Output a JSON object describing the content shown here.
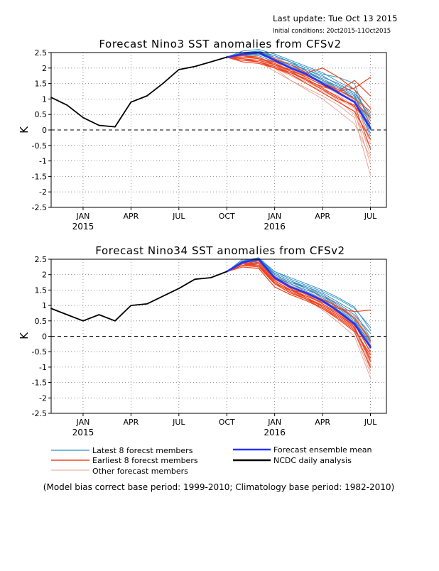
{
  "header": {
    "last_update": "Last update: Tue Oct 13 2015",
    "initial_conditions": "Initial conditions: 20ct2015-11Oct2015"
  },
  "legend": {
    "latest": "Latest 8 forecst members",
    "earliest": "Earliest 8 forecst members",
    "other": "Other forecast members",
    "mean": "Forecast ensemble mean",
    "observed": "NCDC daily analysis"
  },
  "footnote": "(Model bias correct base period: 1999-2010; Climatology base period: 1982-2010)",
  "colors": {
    "latest": "#2f8fc6",
    "earliest": "#ee4420",
    "other": "#e8a090",
    "mean": "#2233ff",
    "observed": "#000000"
  },
  "chart_data": [
    {
      "type": "line",
      "title": "Forecast Nino3 SST anomalies from CFSv2",
      "ylabel": "K",
      "xlabel": "",
      "ylim": [
        -2.5,
        2.5
      ],
      "yticks": [
        "2.5",
        "2",
        "1.5",
        "1",
        "0.5",
        "0",
        "-0.5",
        "-1",
        "-1.5",
        "-2",
        "-2.5"
      ],
      "xlim": [
        "2014-11",
        "2016-08"
      ],
      "xticks": [
        "JAN",
        "APR",
        "JUL",
        "OCT",
        "JAN",
        "APR",
        "JUL"
      ],
      "xtick_dates": [
        "2015-01",
        "2015-04",
        "2015-07",
        "2015-10",
        "2016-01",
        "2016-04",
        "2016-07"
      ],
      "year_labels": [
        "2015",
        "2016"
      ],
      "year_label_dates": [
        "2015-01",
        "2016-01"
      ],
      "grid": "dotted",
      "zero_line": "dashed",
      "observed": {
        "name": "NCDC daily analysis",
        "x": [
          "2014-11",
          "2014-12",
          "2015-01",
          "2015-02",
          "2015-03",
          "2015-04",
          "2015-05",
          "2015-06",
          "2015-07",
          "2015-08",
          "2015-09",
          "2015-10"
        ],
        "y": [
          1.05,
          0.8,
          0.4,
          0.15,
          0.1,
          0.9,
          1.1,
          1.5,
          1.95,
          2.05,
          2.2,
          2.35
        ]
      },
      "ensemble_mean": {
        "name": "Forecast ensemble mean",
        "x": [
          "2015-10",
          "2015-11",
          "2015-12",
          "2016-01",
          "2016-02",
          "2016-03",
          "2016-04",
          "2016-05",
          "2016-06",
          "2016-07"
        ],
        "y": [
          2.35,
          2.45,
          2.5,
          2.25,
          2.0,
          1.8,
          1.5,
          1.2,
          0.9,
          0.05
        ]
      },
      "members_x": [
        "2015-10",
        "2015-11",
        "2015-12",
        "2016-01",
        "2016-02",
        "2016-03",
        "2016-04",
        "2016-05",
        "2016-06",
        "2016-07"
      ],
      "members": {
        "latest": [
          [
            2.35,
            2.45,
            2.55,
            2.4,
            2.2,
            2.0,
            1.8,
            1.7,
            1.5,
            0.1
          ],
          [
            2.35,
            2.5,
            2.45,
            2.3,
            2.1,
            1.95,
            1.7,
            1.5,
            1.2,
            0.5
          ],
          [
            2.35,
            2.4,
            2.5,
            2.35,
            2.2,
            1.9,
            1.6,
            1.4,
            1.0,
            -0.2
          ],
          [
            2.35,
            2.55,
            2.6,
            2.45,
            2.25,
            2.05,
            1.85,
            1.55,
            1.3,
            0.3
          ],
          [
            2.35,
            2.45,
            2.4,
            2.2,
            2.0,
            1.8,
            1.55,
            1.3,
            1.05,
            0.2
          ],
          [
            2.35,
            2.5,
            2.55,
            2.3,
            2.05,
            1.85,
            1.6,
            1.35,
            1.1,
            -0.1
          ],
          [
            2.35,
            2.4,
            2.45,
            2.25,
            2.15,
            1.95,
            1.75,
            1.45,
            1.2,
            0.4
          ],
          [
            2.35,
            2.5,
            2.5,
            2.4,
            2.2,
            1.9,
            1.65,
            1.4,
            1.15,
            0.0
          ]
        ],
        "earliest": [
          [
            2.35,
            2.3,
            2.2,
            2.0,
            1.8,
            1.5,
            1.2,
            0.9,
            0.6,
            -0.3
          ],
          [
            2.35,
            2.4,
            2.35,
            2.1,
            1.9,
            1.75,
            1.5,
            1.3,
            1.0,
            0.6
          ],
          [
            2.35,
            2.2,
            2.15,
            2.0,
            1.85,
            1.6,
            1.4,
            1.25,
            1.6,
            1.1
          ],
          [
            2.35,
            2.35,
            2.3,
            2.15,
            1.9,
            1.6,
            1.3,
            1.0,
            0.8,
            -0.6
          ],
          [
            2.35,
            2.3,
            2.25,
            2.1,
            1.95,
            1.7,
            1.45,
            1.2,
            0.9,
            0.4
          ],
          [
            2.35,
            2.45,
            2.5,
            2.3,
            2.1,
            1.85,
            2.0,
            1.7,
            1.3,
            0.7
          ],
          [
            2.35,
            2.25,
            2.2,
            2.05,
            1.85,
            1.65,
            1.35,
            1.05,
            0.75,
            0.2
          ],
          [
            2.35,
            2.4,
            2.3,
            2.2,
            2.0,
            1.8,
            1.5,
            1.25,
            1.35,
            1.7
          ]
        ],
        "other": [
          [
            2.35,
            2.4,
            2.3,
            2.0,
            1.6,
            1.3,
            1.0,
            0.6,
            0.2,
            -0.9
          ],
          [
            2.35,
            2.3,
            2.2,
            1.9,
            1.6,
            1.35,
            1.1,
            0.8,
            0.4,
            -1.45
          ],
          [
            2.35,
            2.45,
            2.35,
            2.1,
            1.85,
            1.6,
            1.3,
            0.95,
            0.5,
            -0.6
          ],
          [
            2.35,
            2.5,
            2.4,
            2.2,
            1.9,
            1.7,
            1.45,
            1.15,
            0.9,
            -0.3
          ],
          [
            2.35,
            2.4,
            2.45,
            2.25,
            2.0,
            1.75,
            1.5,
            1.3,
            1.05,
            0.1
          ],
          [
            2.35,
            2.35,
            2.3,
            2.1,
            1.8,
            1.55,
            1.3,
            1.1,
            0.8,
            -0.1
          ],
          [
            2.35,
            2.45,
            2.5,
            2.35,
            2.1,
            1.9,
            1.6,
            1.3,
            0.95,
            0.3
          ],
          [
            2.35,
            2.3,
            2.25,
            2.05,
            1.8,
            1.5,
            1.2,
            0.9,
            0.6,
            -1.1
          ],
          [
            2.35,
            2.4,
            2.35,
            2.15,
            1.95,
            1.75,
            1.55,
            1.35,
            1.1,
            0.45
          ],
          [
            2.35,
            2.35,
            2.4,
            2.2,
            2.0,
            1.85,
            1.65,
            1.4,
            1.15,
            0.2
          ],
          [
            2.35,
            2.45,
            2.45,
            2.3,
            2.05,
            1.8,
            1.55,
            1.25,
            1.0,
            -0.45
          ],
          [
            2.35,
            2.3,
            2.2,
            2.0,
            1.75,
            1.5,
            1.25,
            1.0,
            0.7,
            -0.8
          ]
        ]
      }
    },
    {
      "type": "line",
      "title": "Forecast Nino34 SST anomalies from CFSv2",
      "ylabel": "K",
      "xlabel": "",
      "ylim": [
        -2.5,
        2.5
      ],
      "yticks": [
        "2.5",
        "2",
        "1.5",
        "1",
        "0.5",
        "0",
        "-0.5",
        "-1",
        "-1.5",
        "-2",
        "-2.5"
      ],
      "xlim": [
        "2014-11",
        "2016-08"
      ],
      "xticks": [
        "JAN",
        "APR",
        "JUL",
        "OCT",
        "JAN",
        "APR",
        "JUL"
      ],
      "xtick_dates": [
        "2015-01",
        "2015-04",
        "2015-07",
        "2015-10",
        "2016-01",
        "2016-04",
        "2016-07"
      ],
      "year_labels": [
        "2015",
        "2016"
      ],
      "year_label_dates": [
        "2015-01",
        "2016-01"
      ],
      "grid": "dotted",
      "zero_line": "dashed",
      "observed": {
        "name": "NCDC daily analysis",
        "x": [
          "2014-11",
          "2014-12",
          "2015-01",
          "2015-02",
          "2015-03",
          "2015-04",
          "2015-05",
          "2015-06",
          "2015-07",
          "2015-08",
          "2015-09",
          "2015-10"
        ],
        "y": [
          0.9,
          0.7,
          0.5,
          0.7,
          0.5,
          1.0,
          1.05,
          1.3,
          1.55,
          1.85,
          1.9,
          2.1
        ]
      },
      "ensemble_mean": {
        "name": "Forecast ensemble mean",
        "x": [
          "2015-10",
          "2015-11",
          "2015-12",
          "2016-01",
          "2016-02",
          "2016-03",
          "2016-04",
          "2016-05",
          "2016-06",
          "2016-07"
        ],
        "y": [
          2.1,
          2.4,
          2.5,
          1.9,
          1.6,
          1.4,
          1.15,
          0.8,
          0.4,
          -0.35
        ]
      },
      "members_x": [
        "2015-10",
        "2015-11",
        "2015-12",
        "2016-01",
        "2016-02",
        "2016-03",
        "2016-04",
        "2016-05",
        "2016-06",
        "2016-07"
      ],
      "members": {
        "latest": [
          [
            2.1,
            2.45,
            2.55,
            2.1,
            1.85,
            1.65,
            1.45,
            1.2,
            0.9,
            0.3
          ],
          [
            2.1,
            2.4,
            2.5,
            2.0,
            1.75,
            1.6,
            1.35,
            1.0,
            0.6,
            -0.1
          ],
          [
            2.1,
            2.5,
            2.45,
            2.05,
            1.8,
            1.55,
            1.25,
            0.9,
            0.5,
            -0.4
          ],
          [
            2.1,
            2.35,
            2.4,
            1.95,
            1.7,
            1.5,
            1.3,
            1.05,
            0.7,
            0.1
          ],
          [
            2.1,
            2.45,
            2.5,
            2.1,
            1.9,
            1.7,
            1.5,
            1.25,
            0.95,
            0.2
          ],
          [
            2.1,
            2.4,
            2.55,
            2.0,
            1.75,
            1.55,
            1.3,
            0.95,
            0.55,
            -0.3
          ],
          [
            2.1,
            2.5,
            2.5,
            2.05,
            1.8,
            1.6,
            1.4,
            1.1,
            0.8,
            -0.05
          ],
          [
            2.1,
            2.45,
            2.4,
            1.9,
            1.7,
            1.45,
            1.2,
            0.85,
            0.45,
            -0.2
          ]
        ],
        "earliest": [
          [
            2.1,
            2.3,
            2.3,
            1.7,
            1.4,
            1.2,
            0.9,
            0.6,
            0.2,
            -0.6
          ],
          [
            2.1,
            2.4,
            2.35,
            1.8,
            1.5,
            1.3,
            1.1,
            0.9,
            0.8,
            0.85
          ],
          [
            2.1,
            2.35,
            2.3,
            1.75,
            1.45,
            1.2,
            1.0,
            0.7,
            0.3,
            -0.8
          ],
          [
            2.1,
            2.3,
            2.4,
            1.85,
            1.6,
            1.35,
            1.05,
            0.75,
            0.4,
            -0.5
          ],
          [
            2.1,
            2.25,
            2.2,
            1.6,
            1.35,
            1.15,
            0.9,
            0.55,
            0.15,
            -1.0
          ],
          [
            2.1,
            2.35,
            2.45,
            1.9,
            1.55,
            1.25,
            1.0,
            0.7,
            0.35,
            -0.3
          ],
          [
            2.1,
            2.3,
            2.25,
            1.7,
            1.5,
            1.4,
            1.2,
            0.95,
            0.6,
            -0.15
          ],
          [
            2.1,
            2.4,
            2.3,
            1.8,
            1.5,
            1.25,
            0.95,
            0.65,
            0.25,
            -0.7
          ]
        ],
        "other": [
          [
            2.1,
            2.35,
            2.3,
            1.8,
            1.5,
            1.2,
            0.85,
            0.45,
            0.0,
            -1.35
          ],
          [
            2.1,
            2.4,
            2.45,
            1.95,
            1.65,
            1.4,
            1.15,
            0.85,
            0.5,
            -0.9
          ],
          [
            2.1,
            2.3,
            2.35,
            1.85,
            1.55,
            1.3,
            1.05,
            0.7,
            0.3,
            -1.1
          ],
          [
            2.1,
            2.45,
            2.5,
            2.0,
            1.7,
            1.5,
            1.3,
            1.0,
            0.65,
            -0.2
          ],
          [
            2.1,
            2.35,
            2.4,
            1.9,
            1.6,
            1.35,
            1.1,
            0.8,
            0.45,
            -0.55
          ],
          [
            2.1,
            2.4,
            2.35,
            1.85,
            1.55,
            1.35,
            1.15,
            0.9,
            0.6,
            0.1
          ],
          [
            2.1,
            2.3,
            2.3,
            1.8,
            1.5,
            1.25,
            0.95,
            0.6,
            0.2,
            -0.75
          ],
          [
            2.1,
            2.45,
            2.45,
            2.0,
            1.75,
            1.55,
            1.35,
            1.05,
            0.7,
            -0.1
          ],
          [
            2.1,
            2.35,
            2.4,
            1.9,
            1.6,
            1.35,
            1.05,
            0.75,
            0.35,
            -0.95
          ],
          [
            2.1,
            2.4,
            2.35,
            1.85,
            1.6,
            1.4,
            1.2,
            0.95,
            0.55,
            -0.4
          ],
          [
            2.1,
            2.3,
            2.25,
            1.75,
            1.45,
            1.2,
            0.9,
            0.55,
            0.15,
            -1.2
          ],
          [
            2.1,
            2.45,
            2.5,
            1.95,
            1.65,
            1.45,
            1.25,
            0.95,
            0.6,
            -0.25
          ]
        ]
      }
    }
  ]
}
